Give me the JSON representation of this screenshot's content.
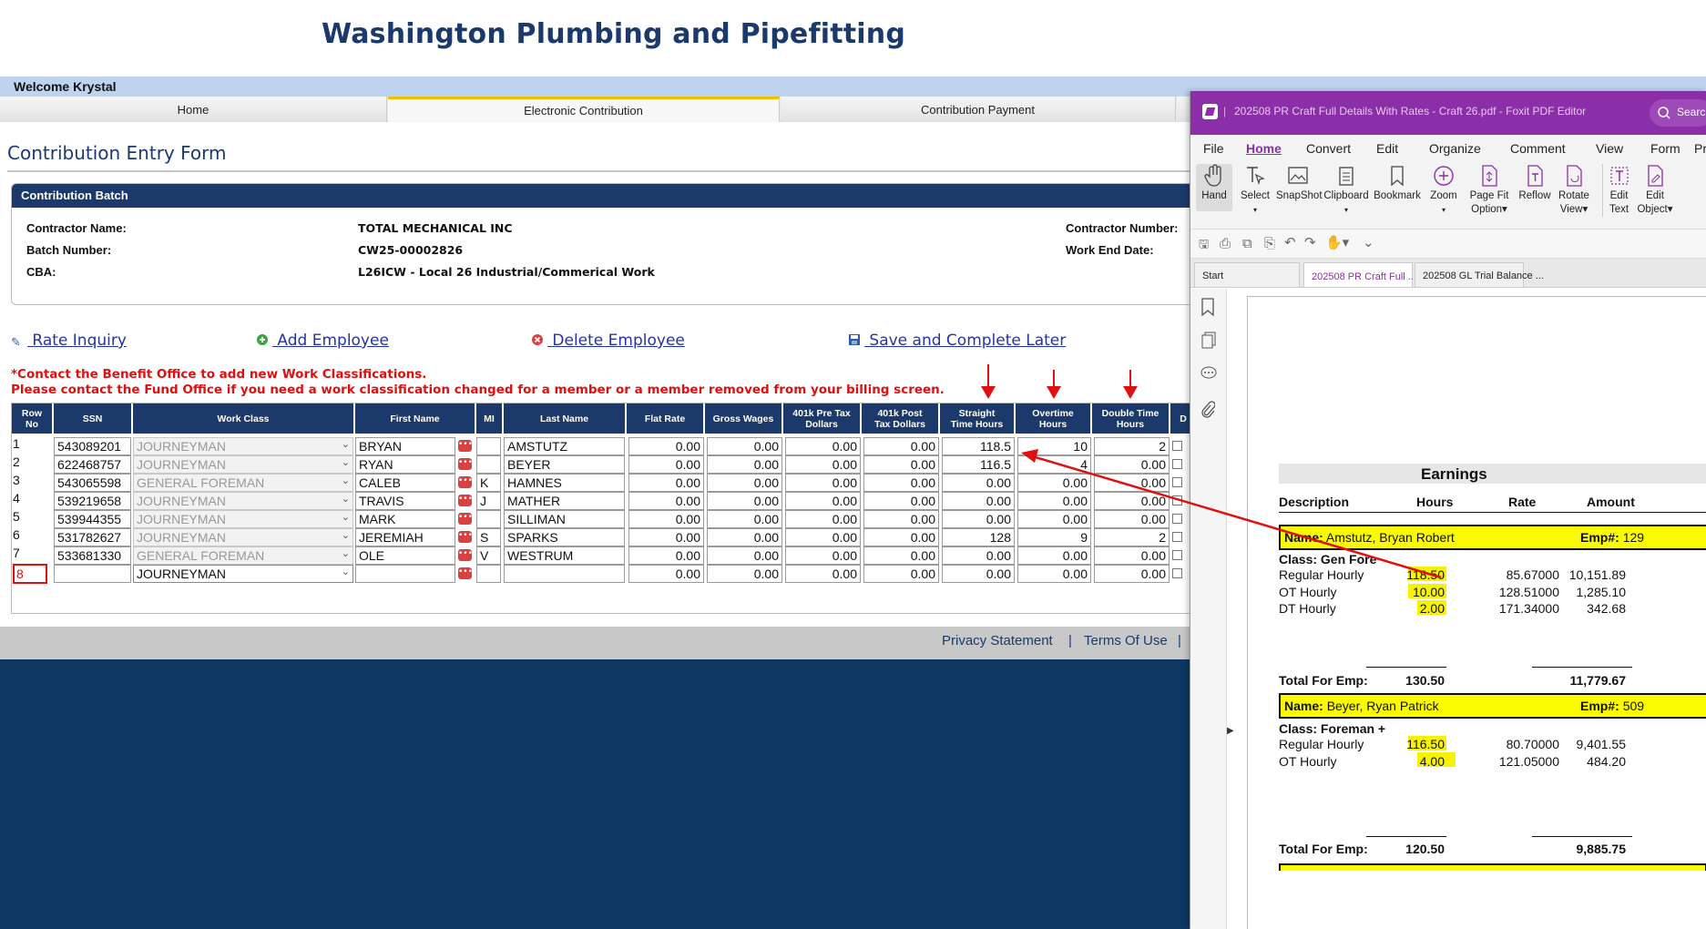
{
  "site": {
    "title": "Washington Plumbing and Pipefitting",
    "welcome": "Welcome Krystal"
  },
  "nav": {
    "tabs": [
      {
        "label": "Home"
      },
      {
        "label": "Electronic Contribution"
      },
      {
        "label": "Contribution Payment"
      }
    ]
  },
  "form": {
    "title": "Contribution Entry Form"
  },
  "batch": {
    "header": "Contribution Batch",
    "contractor_name_label": "Contractor Name:",
    "contractor_name": "TOTAL MECHANICAL INC",
    "batch_number_label": "Batch Number:",
    "batch_number": "CW25-00002826",
    "cba_label": "CBA:",
    "cba": "L26ICW - Local 26 Industrial/Commerical Work",
    "contractor_number_label": "Contractor Number:",
    "work_end_date_label": "Work End Date:"
  },
  "actions": {
    "rate_inquiry": " Rate Inquiry",
    "add_employee": " Add Employee",
    "delete_employee": " Delete Employee",
    "save_later": " Save and Complete Later"
  },
  "warnings": {
    "line1": "*Contact the Benefit Office to add new Work Classifications.",
    "line2": "Please contact the Fund Office if you need a work classification changed for a member or a member removed from your billing screen."
  },
  "table": {
    "headers": {
      "row_no_1": "Row",
      "row_no_2": "No",
      "ssn": "SSN",
      "work_class": "Work Class",
      "first_name": "First Name",
      "mi": "MI",
      "last_name": "Last Name",
      "flat_rate": "Flat Rate",
      "gross_wages": "Gross Wages",
      "pre_tax_1": "401k Pre Tax",
      "pre_tax_2": "Dollars",
      "post_tax_1": "401k Post",
      "post_tax_2": "Tax Dollars",
      "straight_1": "Straight",
      "straight_2": "Time Hours",
      "overtime_1": "Overtime",
      "overtime_2": "Hours",
      "double_1": "Double Time",
      "double_2": "Hours",
      "extra": "D"
    },
    "rows": [
      {
        "no": "1",
        "ssn": "543089201",
        "work_class": "JOURNEYMAN",
        "first": "BRYAN",
        "mi": "",
        "last": "AMSTUTZ",
        "flat": "0.00",
        "gross": "0.00",
        "pre": "0.00",
        "post": "0.00",
        "st": "118.5",
        "ot": "10",
        "dt": "2"
      },
      {
        "no": "2",
        "ssn": "622468757",
        "work_class": "JOURNEYMAN",
        "first": "RYAN",
        "mi": "",
        "last": "BEYER",
        "flat": "0.00",
        "gross": "0.00",
        "pre": "0.00",
        "post": "0.00",
        "st": "116.5",
        "ot": "4",
        "dt": "0.00"
      },
      {
        "no": "3",
        "ssn": "543065598",
        "work_class": "GENERAL FOREMAN",
        "first": "CALEB",
        "mi": "K",
        "last": "HAMNES",
        "flat": "0.00",
        "gross": "0.00",
        "pre": "0.00",
        "post": "0.00",
        "st": "0.00",
        "ot": "0.00",
        "dt": "0.00"
      },
      {
        "no": "4",
        "ssn": "539219658",
        "work_class": "JOURNEYMAN",
        "first": "TRAVIS",
        "mi": "J",
        "last": "MATHER",
        "flat": "0.00",
        "gross": "0.00",
        "pre": "0.00",
        "post": "0.00",
        "st": "0.00",
        "ot": "0.00",
        "dt": "0.00"
      },
      {
        "no": "5",
        "ssn": "539944355",
        "work_class": "JOURNEYMAN",
        "first": "MARK",
        "mi": "",
        "last": "SILLIMAN",
        "flat": "0.00",
        "gross": "0.00",
        "pre": "0.00",
        "post": "0.00",
        "st": "0.00",
        "ot": "0.00",
        "dt": "0.00"
      },
      {
        "no": "6",
        "ssn": "531782627",
        "work_class": "JOURNEYMAN",
        "first": "JEREMIAH",
        "mi": "S",
        "last": "SPARKS",
        "flat": "0.00",
        "gross": "0.00",
        "pre": "0.00",
        "post": "0.00",
        "st": "128",
        "ot": "9",
        "dt": "2"
      },
      {
        "no": "7",
        "ssn": "533681330",
        "work_class": "GENERAL FOREMAN",
        "first": "OLE",
        "mi": "V",
        "last": "WESTRUM",
        "flat": "0.00",
        "gross": "0.00",
        "pre": "0.00",
        "post": "0.00",
        "st": "0.00",
        "ot": "0.00",
        "dt": "0.00"
      },
      {
        "no": "8",
        "ssn": "",
        "work_class": "JOURNEYMAN",
        "first": "",
        "mi": "",
        "last": "",
        "flat": "0.00",
        "gross": "0.00",
        "pre": "0.00",
        "post": "0.00",
        "st": "0.00",
        "ot": "0.00",
        "dt": "0.00"
      }
    ]
  },
  "footer": {
    "privacy": "Privacy Statement",
    "terms": "Terms Of Use"
  },
  "pdf": {
    "title": "202508 PR Craft Full Details With Rates - Craft 26.pdf - Foxit PDF Editor",
    "search": "Search",
    "menu": [
      "File",
      "Home",
      "Convert",
      "Edit",
      "Organize",
      "Comment",
      "View",
      "Form",
      "Pr"
    ],
    "ribbon": {
      "hand": "Hand",
      "select": "Select",
      "snapshot": "SnapShot",
      "clipboard": "Clipboard",
      "bookmark": "Bookmark",
      "zoom": "Zoom",
      "page_fit_1": "Page Fit",
      "page_fit_2": "Option",
      "reflow": "Reflow",
      "rotate_1": "Rotate",
      "rotate_2": "View",
      "edit_text_1": "Edit",
      "edit_text_2": "Text",
      "edit_obj_1": "Edit",
      "edit_obj_2": "Object"
    },
    "tabs": {
      "start": "Start",
      "doc1": "202508 PR Craft Full ...",
      "doc2": "202508 GL Trial Balance ..."
    },
    "report": {
      "earnings": "Earnings",
      "col_desc": "Description",
      "col_hours": "Hours",
      "col_rate": "Rate",
      "col_amount": "Amount",
      "name_label": "Name:",
      "emp_label": "Emp#:",
      "emp1": {
        "name": "Amstutz, Bryan Robert",
        "emp": "129",
        "class": "Class: Gen Fore",
        "lines": [
          {
            "desc": "Regular Hourly",
            "hours": "118.50",
            "rate": "85.67000",
            "amount": "10,151.89"
          },
          {
            "desc": "OT Hourly",
            "hours": "10.00",
            "rate": "128.51000",
            "amount": "1,285.10"
          },
          {
            "desc": "DT Hourly",
            "hours": "2.00",
            "rate": "171.34000",
            "amount": "342.68"
          }
        ],
        "total_label": "Total For Emp:",
        "total_hours": "130.50",
        "total_amount": "11,779.67"
      },
      "emp2": {
        "name": "Beyer, Ryan Patrick",
        "emp": "509",
        "class": "Class: Foreman +",
        "lines": [
          {
            "desc": "Regular Hourly",
            "hours": "116.50",
            "rate": "80.70000",
            "amount": "9,401.55"
          },
          {
            "desc": "OT Hourly",
            "hours": "4.00",
            "rate": "121.05000",
            "amount": "484.20"
          }
        ],
        "total_label": "Total For Emp:",
        "total_hours": "120.50",
        "total_amount": "9,885.75"
      }
    }
  },
  "colors": {
    "navy": "#1b3a6b",
    "welcome_bar": "#bdd3ee",
    "warning_red": "#e01010",
    "foxit_purple": "#8b2fa8",
    "highlight": "#f6f200"
  }
}
